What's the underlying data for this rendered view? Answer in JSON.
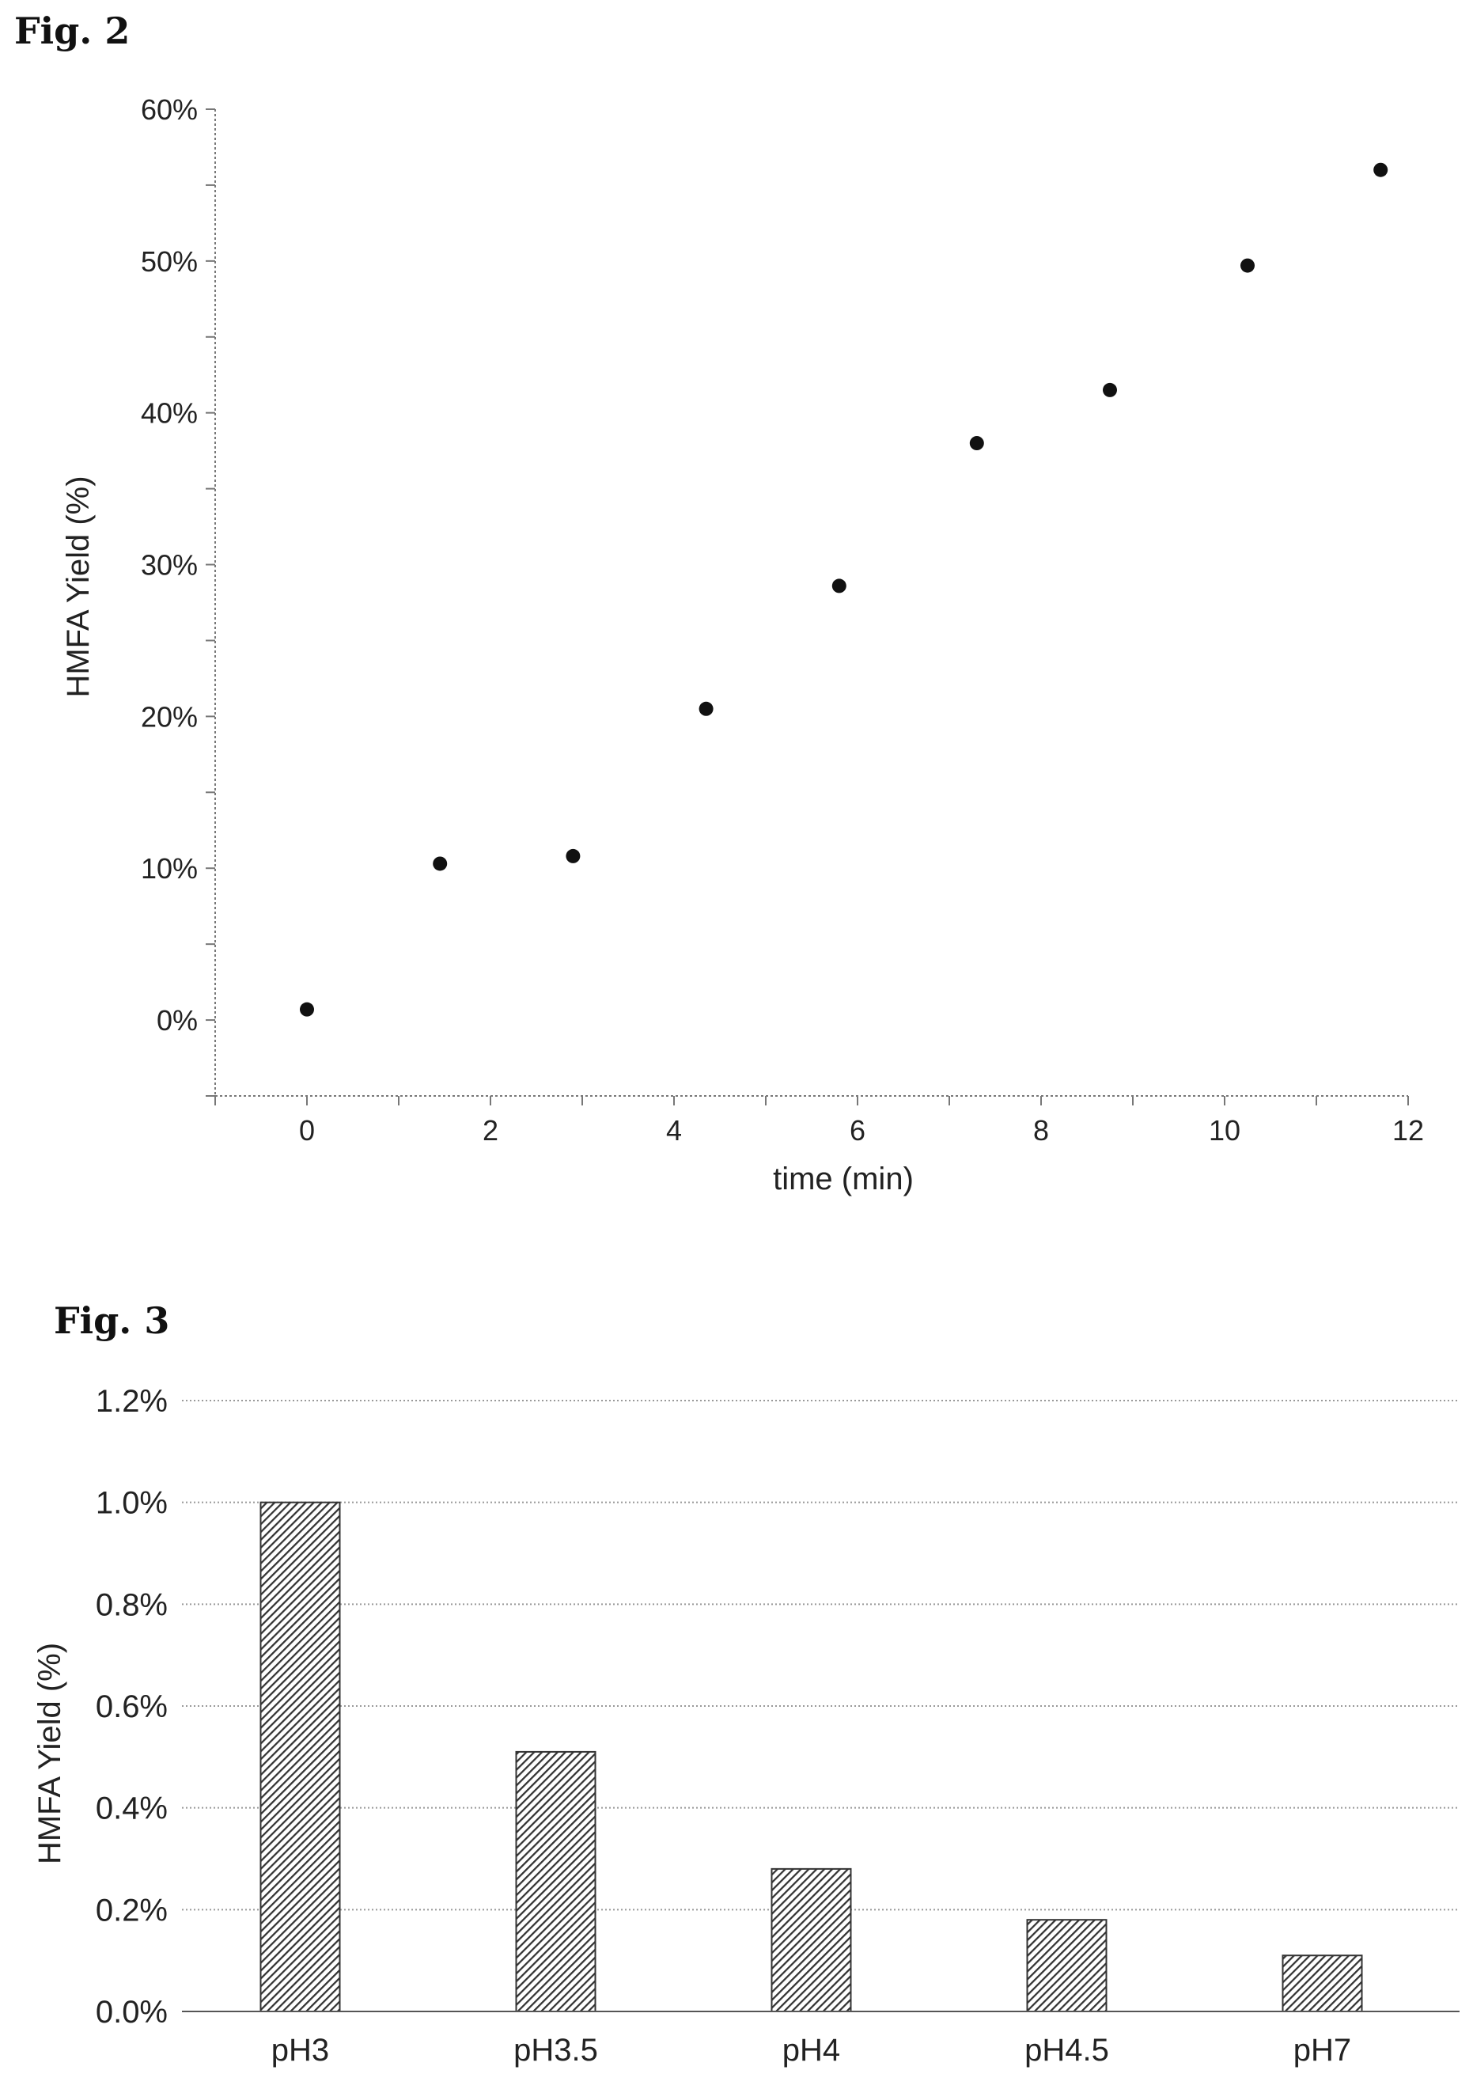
{
  "figures": {
    "fig2_title": "Fig. 2",
    "fig3_title": "Fig. 3"
  },
  "chart_data": [
    {
      "type": "scatter",
      "title": "Fig. 2",
      "xlabel": "time (min)",
      "ylabel": "HMFA Yield (%)",
      "xlim": [
        -1,
        12
      ],
      "ylim": [
        -5,
        60
      ],
      "x_ticks": [
        0,
        2,
        4,
        6,
        8,
        10,
        12
      ],
      "x_tick_labels": [
        "0",
        "2",
        "4",
        "6",
        "8",
        "10",
        "12"
      ],
      "y_ticks": [
        0,
        10,
        20,
        30,
        40,
        50,
        60
      ],
      "y_tick_labels": [
        "0%",
        "10%",
        "20%",
        "30%",
        "40%",
        "50%",
        "60%"
      ],
      "grid": false,
      "marker_color": "#111111",
      "points": [
        {
          "x": 0,
          "y": 0.7
        },
        {
          "x": 1.45,
          "y": 10.3
        },
        {
          "x": 2.9,
          "y": 10.8
        },
        {
          "x": 4.35,
          "y": 20.5
        },
        {
          "x": 5.8,
          "y": 28.6
        },
        {
          "x": 7.3,
          "y": 38.0
        },
        {
          "x": 8.75,
          "y": 41.5
        },
        {
          "x": 10.25,
          "y": 49.7
        },
        {
          "x": 11.7,
          "y": 56.0
        }
      ]
    },
    {
      "type": "bar",
      "title": "Fig. 3",
      "xlabel": "",
      "ylabel": "HMFA Yield (%)",
      "ylim": [
        0,
        1.2
      ],
      "y_ticks": [
        0,
        0.2,
        0.4,
        0.6,
        0.8,
        1.0,
        1.2
      ],
      "y_tick_labels": [
        "0.0%",
        "0.2%",
        "0.4%",
        "0.6%",
        "0.8%",
        "1.0%",
        "1.2%"
      ],
      "grid": true,
      "bar_fill": "hatched",
      "categories": [
        "pH3",
        "pH3.5",
        "pH4",
        "pH4.5",
        "pH7"
      ],
      "values": [
        1.0,
        0.51,
        0.28,
        0.18,
        0.11
      ]
    }
  ]
}
